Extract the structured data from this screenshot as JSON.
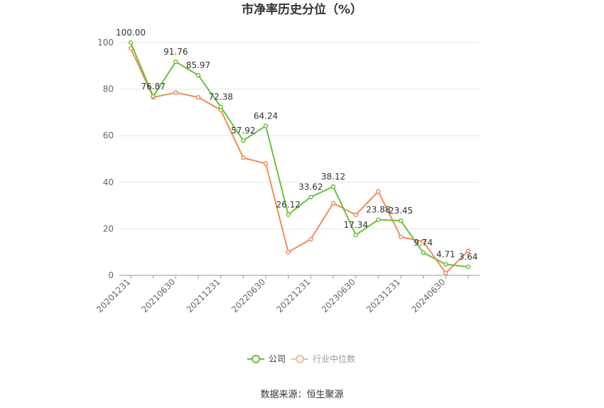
{
  "chart_data": {
    "type": "line",
    "title": "市净率历史分位（%）",
    "source": "数据来源：恒生聚源",
    "xlabel": "",
    "ylabel": "",
    "ylim": [
      0,
      100
    ],
    "yticks": [
      0,
      20,
      40,
      60,
      80,
      100
    ],
    "x": [
      "20201231",
      "20210331",
      "20210630",
      "20210930",
      "20211231",
      "20220331",
      "20220630",
      "20220930",
      "20221231",
      "20230331",
      "20230630",
      "20230930",
      "20231231",
      "20240331",
      "20240630",
      "20240930"
    ],
    "xtick_labels": [
      "20201231",
      "20210630",
      "20211231",
      "20220630",
      "20221231",
      "20230630",
      "20231231",
      "20240630"
    ],
    "legend_position": "bottom",
    "series": [
      {
        "name": "公司",
        "color": "#67c23a",
        "values": [
          100.0,
          76.87,
          91.76,
          85.97,
          72.38,
          57.92,
          64.24,
          26.12,
          33.62,
          38.12,
          17.34,
          23.88,
          23.45,
          9.74,
          4.71,
          3.64
        ],
        "labels": [
          "100.00",
          "76.87",
          "91.76",
          "85.97",
          "72.38",
          "57.92",
          "64.24",
          "26.12",
          "33.62",
          "38.12",
          "17.34",
          "23.88",
          "23.45",
          "9.74",
          "4.71",
          "3.64"
        ]
      },
      {
        "name": "行业中位数",
        "color": "#f08c5a",
        "values": [
          97.5,
          76.5,
          78.5,
          76.5,
          71.0,
          50.5,
          48.0,
          10.0,
          15.5,
          31.0,
          26.0,
          36.0,
          16.5,
          14.5,
          1.0,
          10.5
        ]
      }
    ]
  }
}
